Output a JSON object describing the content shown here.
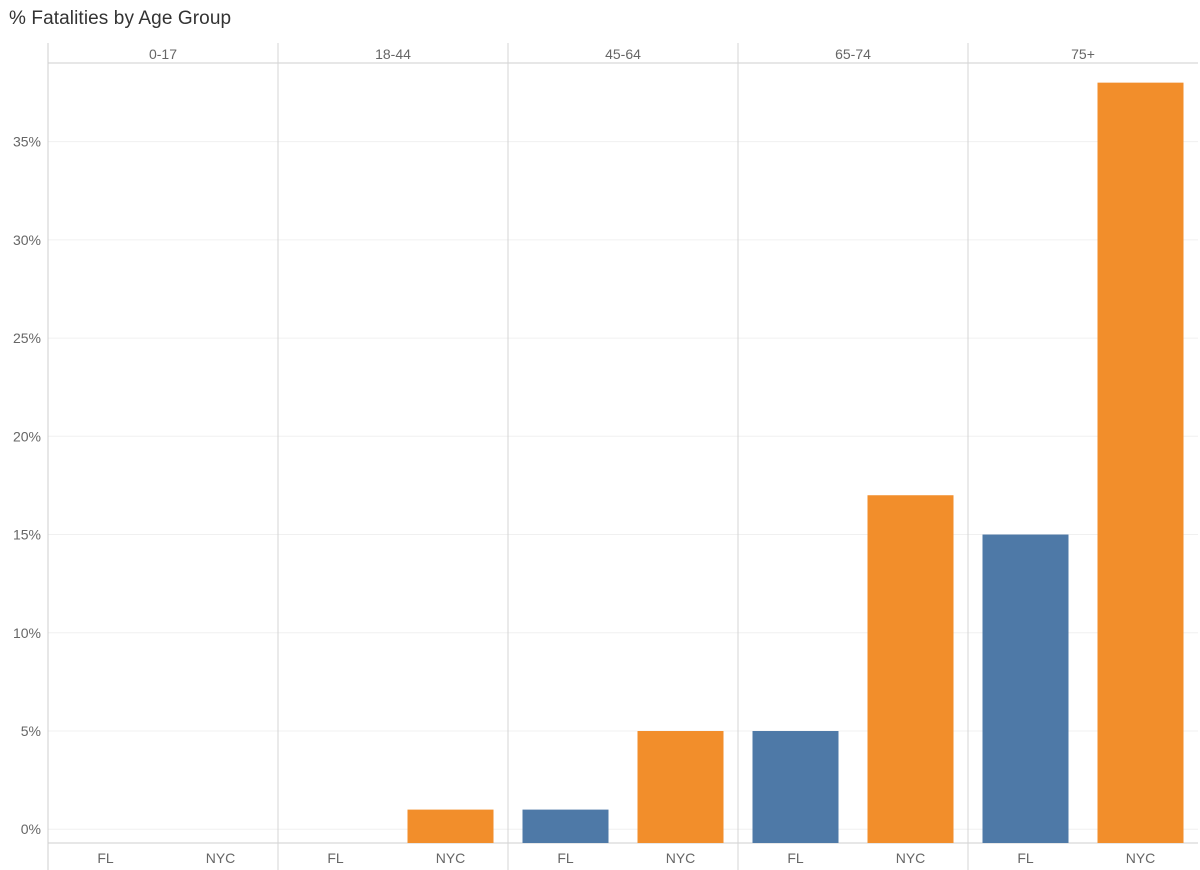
{
  "chart_data": {
    "type": "bar",
    "title": "% Fatalities by Age Group",
    "panels": [
      "0-17",
      "18-44",
      "45-64",
      "65-74",
      "75+"
    ],
    "categories": [
      "FL",
      "NYC"
    ],
    "colors": {
      "FL": "#4e79a7",
      "NYC": "#f28e2b"
    },
    "values": {
      "FL": [
        0,
        0,
        1,
        5,
        15
      ],
      "NYC": [
        0,
        1,
        5,
        17,
        38
      ]
    },
    "ylim": [
      -0.7,
      39
    ],
    "yticks": [
      0,
      5,
      10,
      15,
      20,
      25,
      30,
      35
    ],
    "ytick_labels": [
      "0%",
      "5%",
      "10%",
      "15%",
      "20%",
      "25%",
      "30%",
      "35%"
    ],
    "grid": true
  }
}
